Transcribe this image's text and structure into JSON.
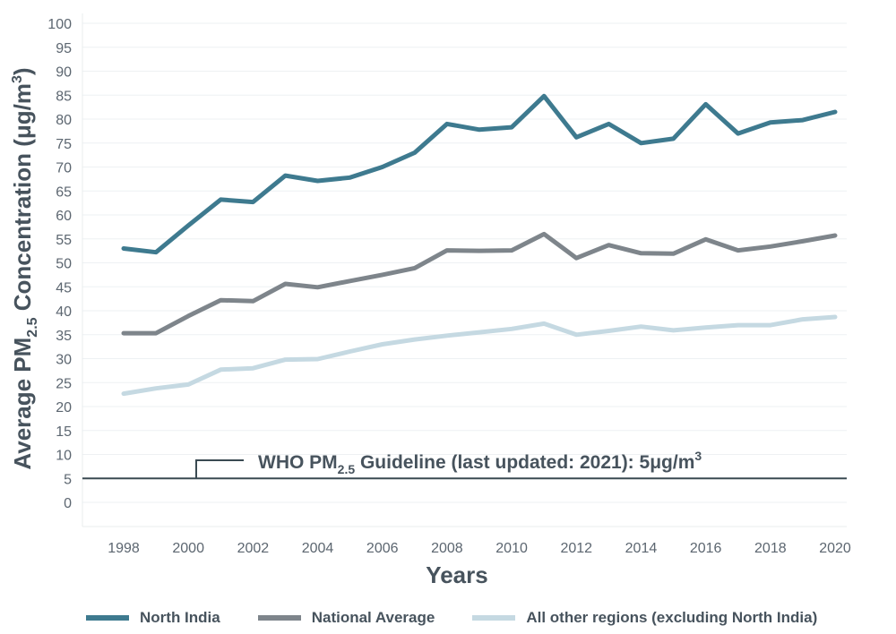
{
  "chart_data": {
    "type": "line",
    "xlabel": "Years",
    "ylabel_parts": {
      "pre": "Average PM",
      "sub": "2.5",
      "post": " Concentration (μg/m",
      "sup": "3",
      "end": ")"
    },
    "x": [
      1998,
      1999,
      2000,
      2001,
      2002,
      2003,
      2004,
      2005,
      2006,
      2007,
      2008,
      2009,
      2010,
      2011,
      2012,
      2013,
      2014,
      2015,
      2016,
      2017,
      2018,
      2019,
      2020
    ],
    "x_ticks": [
      "1998",
      "2000",
      "2002",
      "2004",
      "2006",
      "2008",
      "2010",
      "2012",
      "2014",
      "2016",
      "2018",
      "2020"
    ],
    "ylim": [
      0,
      100
    ],
    "y_ticks": [
      "0",
      "5",
      "10",
      "15",
      "20",
      "25",
      "30",
      "35",
      "40",
      "45",
      "50",
      "55",
      "60",
      "65",
      "70",
      "75",
      "80",
      "85",
      "90",
      "95",
      "100"
    ],
    "grid": true,
    "series": [
      {
        "name": "North India",
        "color": "#3e7a8f",
        "values": [
          53,
          52.2,
          57.8,
          63.2,
          62.7,
          68.2,
          67.1,
          67.8,
          70,
          73,
          79,
          77.8,
          78.3,
          84.8,
          76.2,
          79,
          75,
          75.9,
          83.1,
          77,
          79.3,
          79.8,
          81.5
        ]
      },
      {
        "name": "National Average",
        "color": "#7e858b",
        "values": [
          35.3,
          35.3,
          38.9,
          42.2,
          42,
          45.6,
          44.9,
          46.2,
          47.5,
          48.9,
          52.6,
          52.5,
          52.6,
          56,
          51,
          53.7,
          52,
          51.9,
          54.9,
          52.6,
          53.4,
          54.5,
          55.7
        ]
      },
      {
        "name": "All other regions (excluding North India)",
        "color": "#c5d9e2",
        "values": [
          22.7,
          23.8,
          24.6,
          27.7,
          28,
          29.8,
          29.9,
          31.5,
          33,
          34,
          34.8,
          35.5,
          36.2,
          37.3,
          35,
          35.8,
          36.7,
          35.9,
          36.5,
          37,
          37,
          38.2,
          38.7
        ]
      }
    ],
    "guideline": {
      "value": 5,
      "label_parts": {
        "pre": "WHO PM",
        "sub": "2.5",
        "post": " Guideline (last updated: 2021): 5μg/m",
        "sup": "3"
      },
      "line_color": "#3a4a52"
    }
  }
}
